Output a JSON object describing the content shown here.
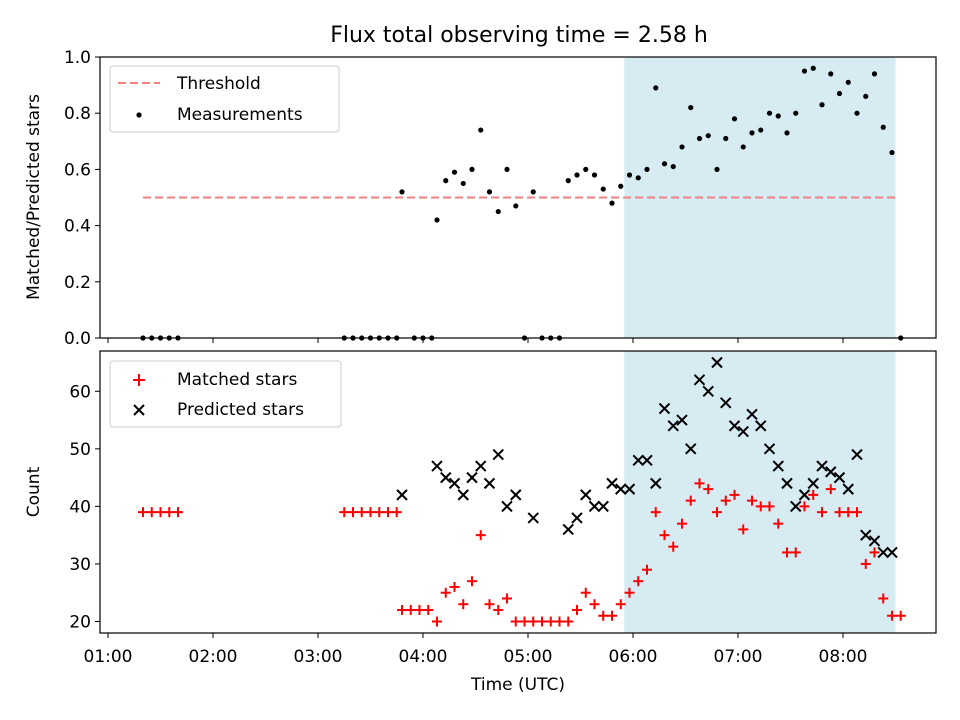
{
  "title": "Flux total observing time = 2.58 h",
  "x_tick_labels": [
    "01:00",
    "02:00",
    "03:00",
    "04:00",
    "05:00",
    "06:00",
    "07:00",
    "08:00"
  ],
  "colors": {
    "threshold": "#f08080",
    "measurement": "#000000",
    "matched": "#ff0000",
    "predicted": "#000000",
    "window": "#add8e6"
  },
  "chart_data": [
    {
      "type": "scatter",
      "ylabel": "Matched/Predicted stars",
      "ylim": [
        0,
        1.0
      ],
      "y_tick_labels": [
        "0.0",
        "0.2",
        "0.4",
        "0.6",
        "0.8",
        "1.0"
      ],
      "observing_window": [
        "05:55",
        "08:30"
      ],
      "legend_position": "upper left",
      "threshold": {
        "name": "Threshold",
        "value": 0.5,
        "x_range": [
          "01:20",
          "08:30"
        ]
      },
      "measurements": {
        "name": "Measurements",
        "points": [
          [
            "01:20",
            0.0
          ],
          [
            "01:25",
            0.0
          ],
          [
            "01:30",
            0.0
          ],
          [
            "01:35",
            0.0
          ],
          [
            "01:40",
            0.0
          ],
          [
            "03:15",
            0.0
          ],
          [
            "03:20",
            0.0
          ],
          [
            "03:25",
            0.0
          ],
          [
            "03:30",
            0.0
          ],
          [
            "03:35",
            0.0
          ],
          [
            "03:40",
            0.0
          ],
          [
            "03:45",
            0.0
          ],
          [
            "03:48",
            0.52
          ],
          [
            "03:55",
            0.0
          ],
          [
            "04:00",
            0.0
          ],
          [
            "04:05",
            0.0
          ],
          [
            "04:08",
            0.42
          ],
          [
            "04:13",
            0.56
          ],
          [
            "04:18",
            0.59
          ],
          [
            "04:23",
            0.55
          ],
          [
            "04:28",
            0.6
          ],
          [
            "04:33",
            0.74
          ],
          [
            "04:38",
            0.52
          ],
          [
            "04:43",
            0.45
          ],
          [
            "04:48",
            0.6
          ],
          [
            "04:53",
            0.47
          ],
          [
            "04:58",
            0.0
          ],
          [
            "05:03",
            0.52
          ],
          [
            "05:08",
            0.0
          ],
          [
            "05:13",
            0.0
          ],
          [
            "05:18",
            0.0
          ],
          [
            "05:23",
            0.56
          ],
          [
            "05:28",
            0.58
          ],
          [
            "05:33",
            0.6
          ],
          [
            "05:38",
            0.58
          ],
          [
            "05:43",
            0.53
          ],
          [
            "05:48",
            0.48
          ],
          [
            "05:53",
            0.54
          ],
          [
            "05:58",
            0.58
          ],
          [
            "06:03",
            0.57
          ],
          [
            "06:08",
            0.6
          ],
          [
            "06:13",
            0.89
          ],
          [
            "06:18",
            0.62
          ],
          [
            "06:23",
            0.61
          ],
          [
            "06:28",
            0.68
          ],
          [
            "06:33",
            0.82
          ],
          [
            "06:38",
            0.71
          ],
          [
            "06:43",
            0.72
          ],
          [
            "06:48",
            0.6
          ],
          [
            "06:53",
            0.71
          ],
          [
            "06:58",
            0.78
          ],
          [
            "07:03",
            0.68
          ],
          [
            "07:08",
            0.73
          ],
          [
            "07:13",
            0.74
          ],
          [
            "07:18",
            0.8
          ],
          [
            "07:23",
            0.79
          ],
          [
            "07:28",
            0.73
          ],
          [
            "07:33",
            0.8
          ],
          [
            "07:38",
            0.95
          ],
          [
            "07:43",
            0.96
          ],
          [
            "07:48",
            0.83
          ],
          [
            "07:53",
            0.94
          ],
          [
            "07:58",
            0.87
          ],
          [
            "08:03",
            0.91
          ],
          [
            "08:08",
            0.8
          ],
          [
            "08:13",
            0.86
          ],
          [
            "08:18",
            0.94
          ],
          [
            "08:23",
            0.75
          ],
          [
            "08:28",
            0.66
          ],
          [
            "08:33",
            0.0
          ]
        ]
      }
    },
    {
      "type": "scatter",
      "xlabel": "Time (UTC)",
      "ylabel": "Count",
      "ylim": [
        18,
        67
      ],
      "y_tick_labels": [
        "20",
        "30",
        "40",
        "50",
        "60"
      ],
      "y_ticks": [
        20,
        30,
        40,
        50,
        60
      ],
      "observing_window": [
        "05:55",
        "08:30"
      ],
      "legend_position": "upper left",
      "series": [
        {
          "name": "Matched stars",
          "marker": "plus",
          "points": [
            [
              "01:20",
              39
            ],
            [
              "01:25",
              39
            ],
            [
              "01:30",
              39
            ],
            [
              "01:35",
              39
            ],
            [
              "01:40",
              39
            ],
            [
              "03:15",
              39
            ],
            [
              "03:20",
              39
            ],
            [
              "03:25",
              39
            ],
            [
              "03:30",
              39
            ],
            [
              "03:35",
              39
            ],
            [
              "03:40",
              39
            ],
            [
              "03:45",
              39
            ],
            [
              "03:48",
              22
            ],
            [
              "03:53",
              22
            ],
            [
              "03:58",
              22
            ],
            [
              "04:03",
              22
            ],
            [
              "04:08",
              20
            ],
            [
              "04:13",
              25
            ],
            [
              "04:18",
              26
            ],
            [
              "04:23",
              23
            ],
            [
              "04:28",
              27
            ],
            [
              "04:33",
              35
            ],
            [
              "04:38",
              23
            ],
            [
              "04:43",
              22
            ],
            [
              "04:48",
              24
            ],
            [
              "04:53",
              20
            ],
            [
              "04:58",
              20
            ],
            [
              "05:03",
              20
            ],
            [
              "05:08",
              20
            ],
            [
              "05:13",
              20
            ],
            [
              "05:18",
              20
            ],
            [
              "05:23",
              20
            ],
            [
              "05:28",
              22
            ],
            [
              "05:33",
              25
            ],
            [
              "05:38",
              23
            ],
            [
              "05:43",
              21
            ],
            [
              "05:48",
              21
            ],
            [
              "05:53",
              23
            ],
            [
              "05:58",
              25
            ],
            [
              "06:03",
              27
            ],
            [
              "06:08",
              29
            ],
            [
              "06:13",
              39
            ],
            [
              "06:18",
              35
            ],
            [
              "06:23",
              33
            ],
            [
              "06:28",
              37
            ],
            [
              "06:33",
              41
            ],
            [
              "06:38",
              44
            ],
            [
              "06:43",
              43
            ],
            [
              "06:48",
              39
            ],
            [
              "06:53",
              41
            ],
            [
              "06:58",
              42
            ],
            [
              "07:03",
              36
            ],
            [
              "07:08",
              41
            ],
            [
              "07:13",
              40
            ],
            [
              "07:18",
              40
            ],
            [
              "07:23",
              37
            ],
            [
              "07:28",
              32
            ],
            [
              "07:33",
              32
            ],
            [
              "07:38",
              40
            ],
            [
              "07:43",
              42
            ],
            [
              "07:48",
              39
            ],
            [
              "07:53",
              43
            ],
            [
              "07:58",
              39
            ],
            [
              "08:03",
              39
            ],
            [
              "08:08",
              39
            ],
            [
              "08:13",
              30
            ],
            [
              "08:18",
              32
            ],
            [
              "08:23",
              24
            ],
            [
              "08:28",
              21
            ],
            [
              "08:33",
              21
            ]
          ]
        },
        {
          "name": "Predicted stars",
          "marker": "x",
          "points": [
            [
              "03:48",
              42
            ],
            [
              "04:08",
              47
            ],
            [
              "04:13",
              45
            ],
            [
              "04:18",
              44
            ],
            [
              "04:23",
              42
            ],
            [
              "04:28",
              45
            ],
            [
              "04:33",
              47
            ],
            [
              "04:38",
              44
            ],
            [
              "04:43",
              49
            ],
            [
              "04:48",
              40
            ],
            [
              "04:53",
              42
            ],
            [
              "05:03",
              38
            ],
            [
              "05:23",
              36
            ],
            [
              "05:28",
              38
            ],
            [
              "05:33",
              42
            ],
            [
              "05:38",
              40
            ],
            [
              "05:43",
              40
            ],
            [
              "05:48",
              44
            ],
            [
              "05:53",
              43
            ],
            [
              "05:58",
              43
            ],
            [
              "06:03",
              48
            ],
            [
              "06:08",
              48
            ],
            [
              "06:13",
              44
            ],
            [
              "06:18",
              57
            ],
            [
              "06:23",
              54
            ],
            [
              "06:28",
              55
            ],
            [
              "06:33",
              50
            ],
            [
              "06:38",
              62
            ],
            [
              "06:43",
              60
            ],
            [
              "06:48",
              65
            ],
            [
              "06:53",
              58
            ],
            [
              "06:58",
              54
            ],
            [
              "07:03",
              53
            ],
            [
              "07:08",
              56
            ],
            [
              "07:13",
              54
            ],
            [
              "07:18",
              50
            ],
            [
              "07:23",
              47
            ],
            [
              "07:28",
              44
            ],
            [
              "07:33",
              40
            ],
            [
              "07:38",
              42
            ],
            [
              "07:43",
              44
            ],
            [
              "07:48",
              47
            ],
            [
              "07:53",
              46
            ],
            [
              "07:58",
              45
            ],
            [
              "08:03",
              43
            ],
            [
              "08:08",
              49
            ],
            [
              "08:13",
              35
            ],
            [
              "08:18",
              34
            ],
            [
              "08:23",
              32
            ],
            [
              "08:28",
              32
            ]
          ]
        }
      ]
    }
  ]
}
